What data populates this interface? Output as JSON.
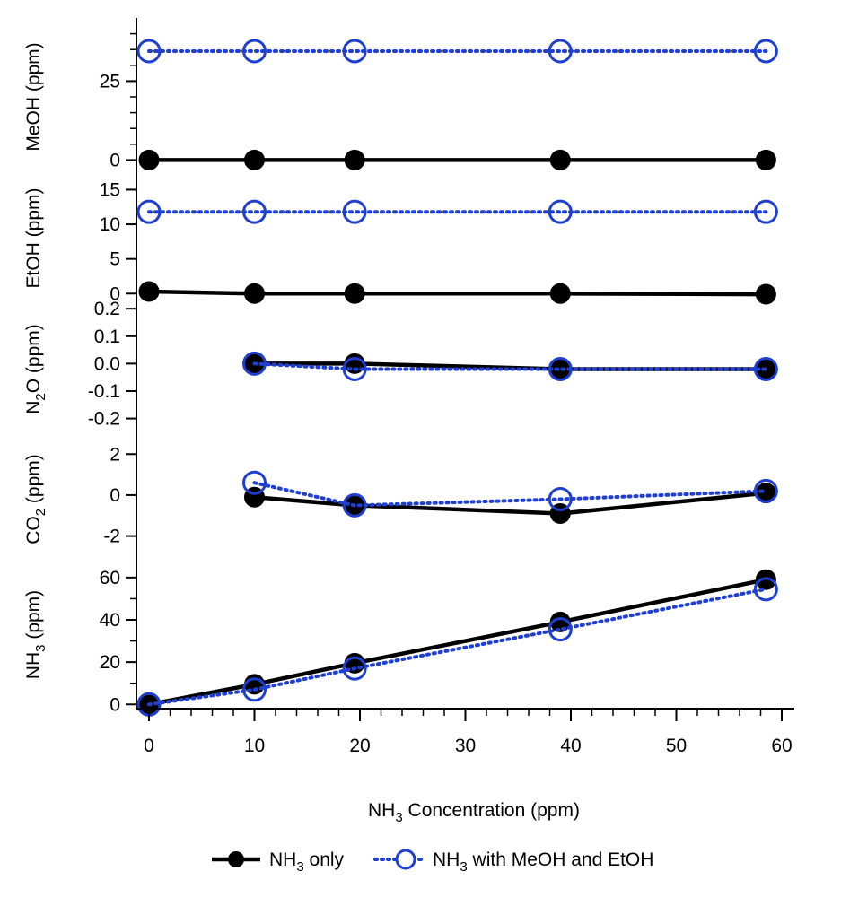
{
  "chart_data": {
    "type": "line",
    "xaxis": {
      "label_main": "NH",
      "label_sub": "3",
      "label_rest": " Concentration (ppm)",
      "range": [
        -1,
        61
      ],
      "ticks": [
        0,
        10,
        20,
        30,
        40,
        50,
        60
      ],
      "tick_labels": [
        "0",
        "10",
        "20",
        "30",
        "40",
        "50",
        "60"
      ]
    },
    "legend": [
      {
        "main": "NH",
        "sub": "3",
        "rest": " only",
        "style": "solid",
        "color": "#000000"
      },
      {
        "main": "NH",
        "sub": "3",
        "rest": " with MeOH and EtOH",
        "style": "dotted",
        "color": "#1f3fd0"
      }
    ],
    "panels": [
      {
        "id": "meoh",
        "ylabel_main": "MeOH (ppm)",
        "ylabel_sub": "",
        "ylabel_rest": "",
        "ylim": [
          -5,
          45
        ],
        "ticks": [
          0,
          25
        ],
        "tick_labels": [
          "0",
          "25"
        ],
        "minor": [
          5,
          10,
          15,
          20,
          30,
          35,
          40
        ],
        "series": [
          {
            "name": "NH3 only",
            "x": [
              0,
              10,
              19.5,
              39,
              58.5
            ],
            "y": [
              0,
              0,
              0,
              0,
              0
            ]
          },
          {
            "name": "NH3 with MeOH and EtOH",
            "x": [
              0,
              10,
              19.5,
              39,
              58.5
            ],
            "y": [
              34.5,
              34.5,
              34.5,
              34.5,
              34.5
            ]
          }
        ]
      },
      {
        "id": "etoh",
        "ylabel_main": "EtOH (ppm)",
        "ylabel_sub": "",
        "ylabel_rest": "",
        "ylim": [
          -1,
          17
        ],
        "ticks": [
          0,
          5,
          10,
          15
        ],
        "tick_labels": [
          "0",
          "5",
          "10",
          "15"
        ],
        "minor": [],
        "series": [
          {
            "name": "NH3 only",
            "x": [
              0,
              10,
              19.5,
              39,
              58.5
            ],
            "y": [
              0.3,
              0,
              0,
              0,
              -0.1
            ]
          },
          {
            "name": "NH3 with MeOH and EtOH",
            "x": [
              0,
              10,
              19.5,
              39,
              58.5
            ],
            "y": [
              11.8,
              11.8,
              11.8,
              11.8,
              11.8
            ]
          }
        ]
      },
      {
        "id": "n2o",
        "ylabel_main": "N",
        "ylabel_sub": "2",
        "ylabel_rest": "O (ppm)",
        "ylim": [
          -0.27,
          0.23
        ],
        "ticks": [
          -0.2,
          -0.1,
          0.0,
          0.1,
          0.2
        ],
        "tick_labels": [
          "-0.2",
          "-0.1",
          "0.0",
          "0.1",
          "0.2"
        ],
        "minor": [],
        "series": [
          {
            "name": "NH3 only",
            "x": [
              10,
              19.5,
              39,
              58.5
            ],
            "y": [
              0.0,
              0.0,
              -0.02,
              -0.02
            ]
          },
          {
            "name": "NH3 with MeOH and EtOH",
            "x": [
              10,
              19.5,
              39,
              58.5
            ],
            "y": [
              0.0,
              -0.02,
              -0.02,
              -0.02
            ]
          }
        ]
      },
      {
        "id": "co2",
        "ylabel_main": "CO",
        "ylabel_sub": "2",
        "ylabel_rest": " (ppm)",
        "ylim": [
          -3.2,
          2.8
        ],
        "ticks": [
          -2,
          0,
          2
        ],
        "tick_labels": [
          "-2",
          "0",
          "2"
        ],
        "minor": [],
        "series": [
          {
            "name": "NH3 only",
            "x": [
              10,
              19.5,
              39,
              58.5
            ],
            "y": [
              -0.1,
              -0.5,
              -0.9,
              0.1
            ]
          },
          {
            "name": "NH3 with MeOH and EtOH",
            "x": [
              10,
              19.5,
              39,
              58.5
            ],
            "y": [
              0.6,
              -0.5,
              -0.2,
              0.2
            ]
          }
        ]
      },
      {
        "id": "nh3",
        "ylabel_main": "NH",
        "ylabel_sub": "3",
        "ylabel_rest": " (ppm)",
        "ylim": [
          -2,
          68
        ],
        "ticks": [
          0,
          20,
          40,
          60
        ],
        "tick_labels": [
          "0",
          "20",
          "40",
          "60"
        ],
        "minor": [
          10,
          30,
          50
        ],
        "series": [
          {
            "name": "NH3 only",
            "x": [
              0,
              10,
              19.5,
              39,
              58.5
            ],
            "y": [
              0,
              9.5,
              19.5,
              39,
              59
            ]
          },
          {
            "name": "NH3 with MeOH and EtOH",
            "x": [
              0,
              10,
              19.5,
              39,
              58.5
            ],
            "y": [
              0,
              7,
              17,
              35.5,
              54.5
            ]
          }
        ]
      }
    ]
  }
}
